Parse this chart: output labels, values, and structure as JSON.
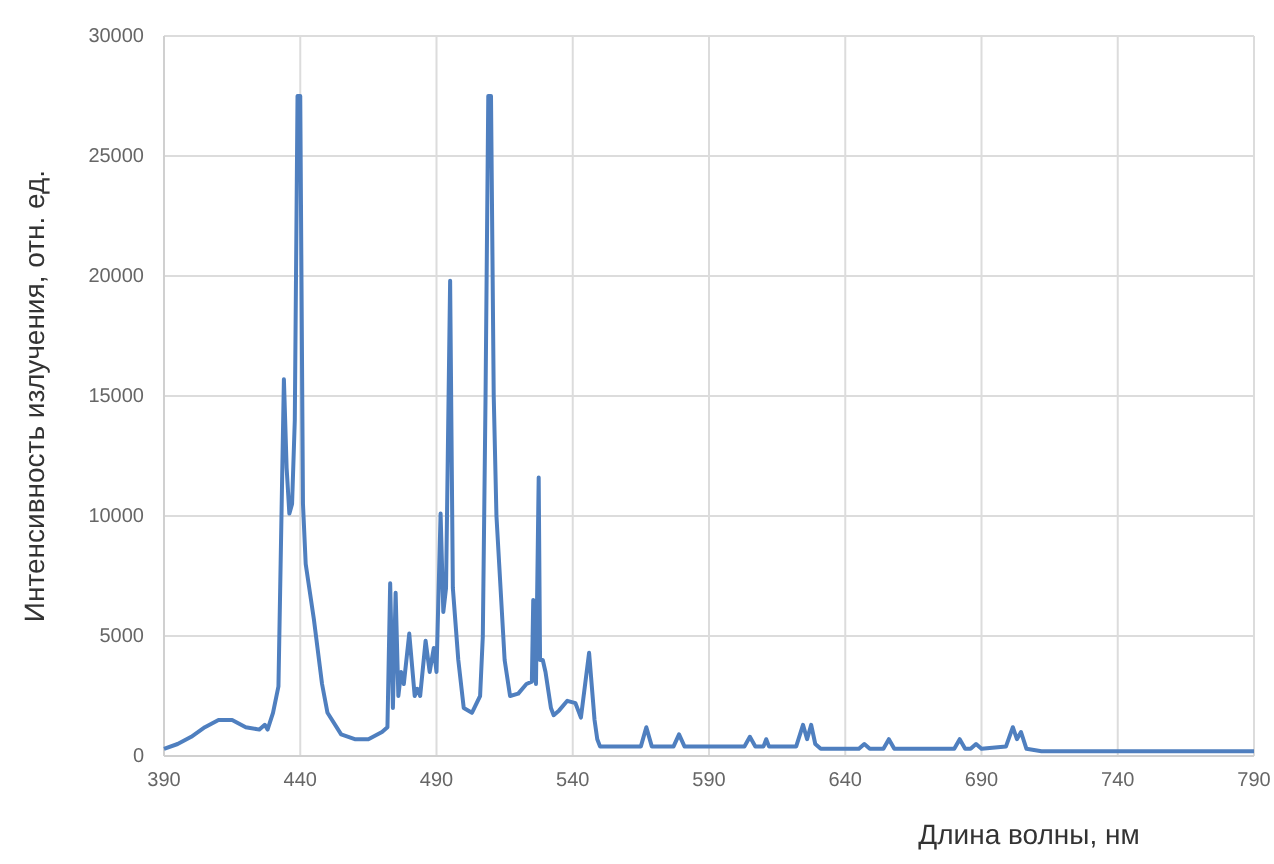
{
  "chart_data": {
    "type": "line",
    "xlabel": "Длина волны, нм",
    "ylabel": "Интенсивность излучения, отн. ед.",
    "xlim": [
      390,
      790
    ],
    "xticks": [
      390,
      440,
      490,
      540,
      590,
      640,
      690,
      740,
      790
    ],
    "ylim": [
      0,
      30000
    ],
    "yticks": [
      0,
      5000,
      10000,
      15000,
      20000,
      25000,
      30000
    ],
    "grid": true,
    "marker": "none",
    "line_style": "solid",
    "series": [
      {
        "color": "#4f7fbf",
        "x": [
          390,
          395,
          400,
          405,
          410,
          415,
          420,
          425,
          427,
          428,
          430,
          432,
          434,
          435,
          436,
          437,
          438,
          439,
          440,
          441,
          442,
          445,
          448,
          450,
          455,
          460,
          465,
          470,
          472,
          473,
          474,
          475,
          476,
          477,
          478,
          480,
          482,
          483,
          484,
          486,
          487.5,
          489,
          490,
          491.5,
          492.5,
          493.5,
          495,
          496,
          498,
          500,
          503,
          506,
          507,
          508,
          509,
          510,
          511,
          512,
          513,
          515,
          517,
          520,
          523,
          525,
          525.5,
          526.5,
          527.5,
          528,
          529,
          530,
          532,
          533,
          535,
          538,
          541,
          543,
          546,
          548,
          549,
          550,
          560,
          565,
          567,
          569,
          577,
          579,
          581,
          603,
          605,
          607,
          610,
          611,
          612,
          622,
          624.5,
          626,
          627.5,
          629,
          631,
          645,
          647,
          649,
          654,
          656,
          658,
          680,
          682,
          684,
          686,
          688,
          690,
          699,
          701.5,
          703,
          704.5,
          706.5,
          712,
          740,
          790
        ],
        "values": [
          300,
          500,
          800,
          1200,
          1500,
          1500,
          1200,
          1100,
          1300,
          1100,
          1800,
          2900,
          15700,
          12000,
          10100,
          10500,
          14000,
          27500,
          27500,
          10500,
          8000,
          5700,
          3000,
          1800,
          900,
          700,
          700,
          1000,
          1200,
          7200,
          2000,
          6800,
          2500,
          3500,
          3000,
          5100,
          2500,
          2800,
          2500,
          4800,
          3500,
          4500,
          3500,
          10100,
          6000,
          7000,
          19800,
          7000,
          4000,
          2000,
          1800,
          2500,
          5000,
          15000,
          27500,
          27500,
          15000,
          10000,
          8000,
          4000,
          2500,
          2600,
          3000,
          3100,
          6500,
          3000,
          11600,
          4000,
          4000,
          3500,
          2000,
          1700,
          1900,
          2300,
          2200,
          1600,
          4300,
          1500,
          700,
          400,
          400,
          400,
          1200,
          400,
          400,
          900,
          400,
          400,
          800,
          400,
          400,
          700,
          400,
          400,
          1300,
          700,
          1300,
          500,
          300,
          300,
          500,
          300,
          300,
          700,
          300,
          300,
          700,
          300,
          300,
          500,
          300,
          400,
          1200,
          700,
          1000,
          300,
          200,
          200,
          200
        ]
      }
    ]
  }
}
